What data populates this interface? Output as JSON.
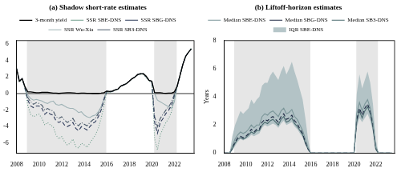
{
  "chart_data": [
    {
      "type": "line",
      "title": "(a) Shadow short-rate estimates",
      "x": [
        2008,
        2008.25,
        2008.5,
        2008.75,
        2009,
        2009.25,
        2009.5,
        2009.75,
        2010,
        2010.25,
        2010.5,
        2010.75,
        2011,
        2011.25,
        2011.5,
        2011.75,
        2012,
        2012.25,
        2012.5,
        2012.75,
        2013,
        2013.25,
        2013.5,
        2013.75,
        2014,
        2014.25,
        2014.5,
        2014.75,
        2015,
        2015.25,
        2015.5,
        2015.75,
        2016,
        2016.25,
        2016.5,
        2016.75,
        2017,
        2017.25,
        2017.5,
        2017.75,
        2018,
        2018.25,
        2018.5,
        2018.75,
        2019,
        2019.25,
        2019.5,
        2019.75,
        2020,
        2020.25,
        2020.5,
        2020.75,
        2021,
        2021.25,
        2021.5,
        2021.75,
        2022,
        2022.25,
        2022.5,
        2022.75,
        2023,
        2023.25,
        2023.5
      ],
      "xlim": [
        2008,
        2023.75
      ],
      "xticks": [
        2008,
        2010,
        2012,
        2014,
        2016,
        2018,
        2020,
        2022
      ],
      "ylim": [
        -7.2,
        6.4
      ],
      "yticks": [
        -6,
        -4,
        -2,
        0,
        2,
        4,
        6
      ],
      "grid": false,
      "legend": "top",
      "hline": 0,
      "shaded_x": [
        [
          2008.92,
          2015.96
        ],
        [
          2020.21,
          2022.21
        ]
      ],
      "series": [
        {
          "name": "3-month yield",
          "color": "#000000",
          "line_style": "solid",
          "values": [
            3.0,
            1.5,
            1.8,
            0.8,
            0.2,
            0.2,
            0.15,
            0.1,
            0.1,
            0.15,
            0.15,
            0.15,
            0.1,
            0.05,
            0.05,
            0.02,
            0.05,
            0.08,
            0.1,
            0.1,
            0.08,
            0.05,
            0.04,
            0.05,
            0.05,
            0.03,
            0.03,
            0.02,
            0.02,
            0.02,
            0.05,
            0.1,
            0.3,
            0.25,
            0.3,
            0.45,
            0.55,
            0.9,
            1.05,
            1.2,
            1.5,
            1.8,
            2.0,
            2.3,
            2.4,
            2.4,
            2.1,
            1.6,
            1.5,
            0.1,
            0.1,
            0.1,
            0.05,
            0.03,
            0.05,
            0.05,
            0.2,
            0.9,
            2.2,
            3.5,
            4.5,
            5.0,
            5.4
          ]
        },
        {
          "name": "SSR SBE-DNS",
          "color": "#6f9e8c",
          "line_style": "dotted",
          "values": [
            3.0,
            1.4,
            1.7,
            0.5,
            -1.5,
            -2.5,
            -2.8,
            -2.6,
            -2.5,
            -3.0,
            -3.8,
            -3.5,
            -3.8,
            -4.0,
            -5.0,
            -5.5,
            -5.2,
            -5.8,
            -6.2,
            -6.0,
            -5.5,
            -6.4,
            -6.6,
            -6.0,
            -6.2,
            -6.5,
            -6.0,
            -5.5,
            -5.0,
            -4.2,
            -3.0,
            -1.5,
            0.2,
            0.1,
            0.2,
            0.4,
            0.5,
            0.9,
            1.0,
            1.2,
            1.5,
            1.8,
            2.0,
            2.3,
            2.3,
            2.3,
            1.9,
            1.5,
            1.3,
            -5.5,
            -6.8,
            -5.0,
            -4.2,
            -3.5,
            -3.0,
            -2.2,
            -0.5,
            0.9,
            2.2,
            3.5,
            4.5,
            5.0,
            5.5
          ]
        },
        {
          "name": "SSR SBG-DNS",
          "color": "#2d3a5a",
          "line_style": "dashed",
          "values": [
            3.0,
            1.5,
            1.8,
            0.6,
            -0.8,
            -1.5,
            -1.7,
            -1.5,
            -1.5,
            -1.8,
            -2.5,
            -2.2,
            -2.5,
            -2.6,
            -3.3,
            -3.5,
            -3.3,
            -3.8,
            -4.0,
            -3.8,
            -3.5,
            -4.2,
            -4.5,
            -4.0,
            -4.2,
            -4.4,
            -4.0,
            -3.6,
            -3.4,
            -2.8,
            -2.0,
            -0.8,
            0.25,
            0.2,
            0.25,
            0.45,
            0.55,
            0.9,
            1.05,
            1.2,
            1.5,
            1.8,
            2.0,
            2.3,
            2.4,
            2.4,
            2.0,
            1.6,
            1.4,
            -3.5,
            -4.8,
            -3.5,
            -3.0,
            -2.4,
            -2.0,
            -1.4,
            -0.3,
            0.9,
            2.2,
            3.5,
            4.5,
            5.0,
            5.4
          ]
        },
        {
          "name": "SSR Wu-Xia",
          "color": "#9fb3b6",
          "line_style": "solid",
          "values": [
            3.0,
            1.5,
            1.8,
            0.8,
            -0.2,
            -0.6,
            -0.8,
            -0.7,
            -0.8,
            -0.9,
            -1.1,
            -1.2,
            -1.0,
            -0.9,
            -1.3,
            -1.4,
            -1.3,
            -1.5,
            -1.7,
            -1.8,
            -1.8,
            -2.0,
            -2.3,
            -2.2,
            -2.6,
            -2.8,
            -2.9,
            -2.7,
            -2.6,
            -2.2,
            -1.6,
            -0.7,
            0.3,
            0.25,
            0.3,
            0.45,
            0.55,
            0.9,
            1.05,
            1.2,
            1.5,
            1.8,
            2.0,
            2.3,
            2.4,
            2.4,
            2.1,
            1.6,
            1.5,
            0.0,
            -0.8,
            -1.0,
            -1.2,
            -1.4,
            -1.6,
            -1.8,
            -1.0,
            0.9,
            2.2,
            3.5,
            4.5,
            5.0,
            5.4
          ]
        },
        {
          "name": "SSR SB3-DNS",
          "color": "#4a5a6a",
          "line_style": "dashdot",
          "values": [
            3.0,
            1.5,
            1.8,
            0.7,
            -0.5,
            -1.0,
            -1.3,
            -1.1,
            -1.2,
            -1.4,
            -2.0,
            -1.8,
            -2.0,
            -2.1,
            -2.8,
            -3.0,
            -2.8,
            -3.2,
            -3.5,
            -3.3,
            -3.0,
            -3.6,
            -3.9,
            -3.5,
            -3.7,
            -3.9,
            -3.5,
            -3.2,
            -3.0,
            -2.4,
            -1.7,
            -0.6,
            0.25,
            0.2,
            0.25,
            0.45,
            0.55,
            0.9,
            1.05,
            1.2,
            1.5,
            1.8,
            2.0,
            2.3,
            2.4,
            2.4,
            2.0,
            1.6,
            1.4,
            -2.8,
            -4.0,
            -3.0,
            -2.5,
            -2.0,
            -1.6,
            -1.0,
            -0.1,
            0.9,
            2.2,
            3.5,
            4.5,
            5.0,
            5.4
          ]
        }
      ]
    },
    {
      "type": "line",
      "title": "(b) Liftoff-horizon estimates",
      "ylabel": "Years",
      "x": [
        2008,
        2008.25,
        2008.5,
        2008.75,
        2009,
        2009.25,
        2009.5,
        2009.75,
        2010,
        2010.25,
        2010.5,
        2010.75,
        2011,
        2011.25,
        2011.5,
        2011.75,
        2012,
        2012.25,
        2012.5,
        2012.75,
        2013,
        2013.25,
        2013.5,
        2013.75,
        2014,
        2014.25,
        2014.5,
        2014.75,
        2015,
        2015.25,
        2015.5,
        2015.75,
        2016,
        2016.25,
        2016.5,
        2016.75,
        2017,
        2017.25,
        2017.5,
        2017.75,
        2018,
        2018.25,
        2018.5,
        2018.75,
        2019,
        2019.25,
        2019.5,
        2019.75,
        2020,
        2020.25,
        2020.5,
        2020.75,
        2021,
        2021.25,
        2021.5,
        2021.75,
        2022,
        2022.25,
        2022.5,
        2022.75,
        2023,
        2023.25,
        2023.5
      ],
      "xlim": [
        2008,
        2023.75
      ],
      "xticks": [
        2008,
        2010,
        2012,
        2014,
        2016,
        2018,
        2020,
        2022
      ],
      "ylim": [
        0,
        8
      ],
      "yticks": [
        0,
        2,
        4,
        6,
        8
      ],
      "grid": false,
      "legend": "top",
      "shaded_x": [
        [
          2008.92,
          2015.96
        ],
        [
          2020.21,
          2022.21
        ]
      ],
      "series": [
        {
          "name": "IQR SBE-DNS",
          "type": "band",
          "color": "#a9bcc0",
          "lower": [
            0,
            0,
            0,
            0.2,
            0.5,
            0.8,
            1.0,
            0.9,
            1.0,
            1.1,
            1.3,
            1.2,
            1.3,
            1.4,
            1.8,
            2.0,
            1.9,
            2.0,
            2.1,
            2.0,
            1.8,
            2.1,
            2.3,
            2.0,
            2.1,
            2.2,
            1.9,
            1.7,
            1.4,
            1.1,
            0.6,
            0.2,
            0,
            0,
            0,
            0,
            0,
            0,
            0,
            0,
            0,
            0,
            0,
            0,
            0,
            0,
            0,
            0,
            0,
            1.8,
            2.5,
            2.2,
            2.5,
            2.8,
            2.3,
            1.5,
            0.2,
            0,
            0,
            0,
            0,
            0,
            0
          ],
          "upper": [
            0,
            0,
            0,
            1.2,
            2.0,
            2.5,
            3.0,
            2.8,
            3.0,
            3.2,
            3.8,
            3.5,
            3.8,
            4.0,
            4.8,
            5.0,
            5.0,
            5.5,
            5.8,
            5.5,
            5.2,
            5.8,
            6.2,
            5.6,
            6.0,
            6.5,
            5.8,
            5.2,
            4.5,
            3.8,
            2.5,
            1.0,
            0,
            0,
            0,
            0,
            0,
            0,
            0,
            0,
            0,
            0,
            0,
            0,
            0,
            0,
            0,
            0,
            0,
            4.2,
            5.6,
            4.6,
            5.2,
            5.8,
            5.0,
            3.5,
            1.0,
            0,
            0,
            0,
            0,
            0,
            0
          ]
        },
        {
          "name": "Median SBE-DNS",
          "color": "#7a9598",
          "line_style": "solid",
          "values": [
            0,
            0,
            0,
            0.5,
            1.0,
            1.3,
            1.5,
            1.4,
            1.5,
            1.7,
            2.0,
            1.8,
            2.0,
            2.0,
            2.6,
            2.8,
            2.7,
            2.9,
            3.0,
            2.8,
            2.6,
            3.0,
            3.2,
            2.8,
            2.9,
            3.1,
            2.6,
            2.4,
            2.0,
            1.6,
            1.0,
            0.4,
            0,
            0,
            0,
            0,
            0,
            0,
            0,
            0,
            0,
            0,
            0,
            0,
            0,
            0,
            0,
            0,
            0,
            2.8,
            3.6,
            3.0,
            3.5,
            3.8,
            3.2,
            2.2,
            0.5,
            0,
            0,
            0,
            0,
            0,
            0
          ]
        },
        {
          "name": "Median SBG-DNS",
          "color": "#1f2a44",
          "line_style": "dashed",
          "values": [
            0,
            0,
            0,
            0.4,
            0.8,
            1.1,
            1.2,
            1.1,
            1.2,
            1.4,
            1.7,
            1.5,
            1.7,
            1.7,
            2.2,
            2.4,
            2.3,
            2.5,
            2.6,
            2.4,
            2.2,
            2.6,
            2.8,
            2.4,
            2.5,
            2.7,
            2.3,
            2.1,
            1.7,
            1.4,
            0.8,
            0.3,
            0,
            0,
            0,
            0,
            0,
            0,
            0,
            0,
            0,
            0,
            0,
            0,
            0,
            0,
            0,
            0,
            0,
            2.4,
            3.2,
            2.7,
            3.2,
            3.5,
            3.0,
            2.0,
            0.4,
            0,
            0,
            0,
            0,
            0,
            0
          ]
        },
        {
          "name": "Median SB3-DNS",
          "color": "#4a6a6e",
          "line_style": "solid",
          "values": [
            0,
            0,
            0,
            0.3,
            0.7,
            1.0,
            1.1,
            1.0,
            1.1,
            1.3,
            1.5,
            1.4,
            1.6,
            1.6,
            2.0,
            2.2,
            2.1,
            2.3,
            2.4,
            2.2,
            2.0,
            2.4,
            2.6,
            2.2,
            2.3,
            2.5,
            2.1,
            1.9,
            1.6,
            1.3,
            0.7,
            0.3,
            0,
            0,
            0,
            0,
            0,
            0,
            0,
            0,
            0,
            0,
            0,
            0,
            0,
            0,
            0,
            0,
            0,
            2.2,
            3.0,
            2.5,
            3.0,
            3.3,
            2.8,
            1.8,
            0.3,
            0,
            0,
            0,
            0,
            0,
            0
          ]
        }
      ]
    }
  ]
}
